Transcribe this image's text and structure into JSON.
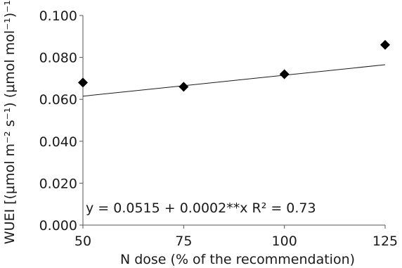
{
  "chart_data": {
    "type": "scatter",
    "xlabel": "N dose  (% of the recommendation)",
    "ylabel": "WUEI [(μmol m⁻² s⁻¹) (μmol mol⁻¹)⁻¹]",
    "x_ticks": [
      "50",
      "75",
      "100",
      "125"
    ],
    "y_ticks": [
      "0.000",
      "0.020",
      "0.040",
      "0.060",
      "0.080",
      "0.100"
    ],
    "xlim": [
      50,
      125
    ],
    "ylim": [
      0,
      0.1
    ],
    "grid": false,
    "series": [
      {
        "x": [
          50,
          75,
          100,
          125
        ],
        "y": [
          0.068,
          0.066,
          0.072,
          0.086
        ]
      }
    ],
    "trendline": {
      "intercept": 0.0515,
      "slope": 0.0002
    },
    "annotation": "y = 0.0515 + 0.0002**x R² = 0.73"
  }
}
